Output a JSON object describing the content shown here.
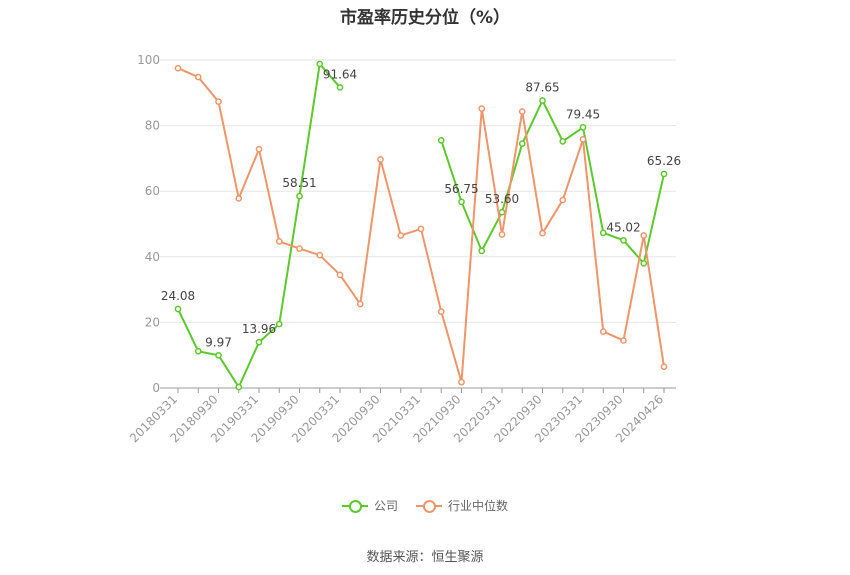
{
  "chart_data": {
    "type": "line",
    "title": "市盈率历史分位（%）",
    "x": [
      "20180331",
      "20180630",
      "20180930",
      "20181231",
      "20190331",
      "20190630",
      "20190930",
      "20191231",
      "20200331",
      "20200630",
      "20200930",
      "20201231",
      "20210331",
      "20210630",
      "20210930",
      "20211231",
      "20220331",
      "20220630",
      "20220930",
      "20221231",
      "20230331",
      "20230630",
      "20230930",
      "20231231",
      "20240426"
    ],
    "x_tick_labels": [
      "20180331",
      "20180930",
      "20190331",
      "20190930",
      "20200331",
      "20200930",
      "20210331",
      "20210930",
      "20220331",
      "20220930",
      "20230331",
      "20230930",
      "20240426"
    ],
    "ylim": [
      0,
      100
    ],
    "y_ticks": [
      0,
      20,
      40,
      60,
      80,
      100
    ],
    "grid": true,
    "legend_position": "bottom",
    "series": [
      {
        "name": "公司",
        "color": "#5cc92b",
        "values": [
          24.08,
          11.2,
          9.97,
          0.3,
          13.96,
          19.5,
          58.51,
          98.8,
          91.64,
          null,
          null,
          null,
          null,
          75.5,
          56.75,
          41.8,
          53.6,
          74.5,
          87.65,
          75.2,
          79.45,
          47.3,
          45.02,
          38.0,
          65.26
        ],
        "labels": [
          "24.08",
          null,
          "9.97",
          null,
          "13.96",
          null,
          "58.51",
          null,
          "91.64",
          null,
          null,
          null,
          null,
          null,
          "56.75",
          null,
          "53.60",
          null,
          "87.65",
          null,
          "79.45",
          null,
          "45.02",
          null,
          "65.26"
        ]
      },
      {
        "name": "行业中位数",
        "color": "#f0956a",
        "values": [
          97.5,
          94.8,
          87.3,
          57.8,
          72.8,
          44.7,
          42.5,
          40.5,
          34.5,
          25.6,
          69.7,
          46.5,
          48.5,
          23.3,
          1.8,
          85.2,
          46.8,
          84.3,
          47.2,
          57.3,
          75.8,
          17.2,
          14.5,
          46.5,
          6.5
        ],
        "labels": []
      }
    ]
  },
  "source_text": "数据来源：恒生聚源"
}
